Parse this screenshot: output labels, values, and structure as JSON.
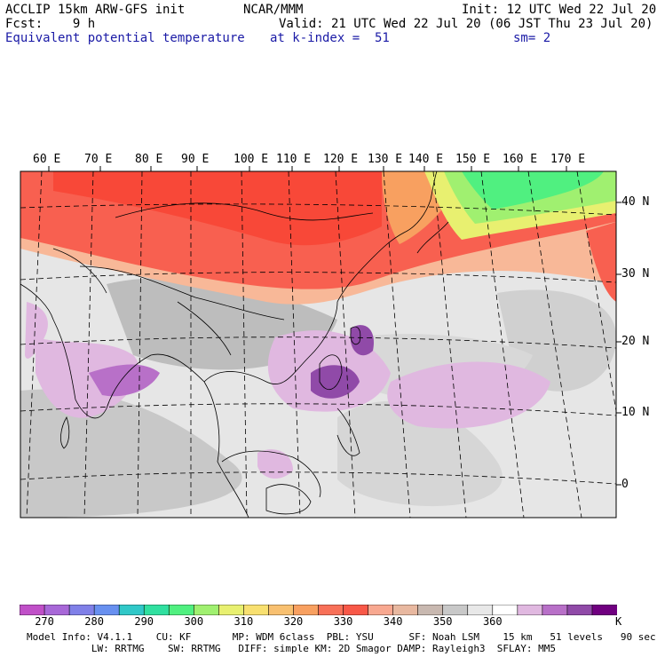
{
  "header": {
    "left_line1": "ACCLIP 15km ARW-GFS init",
    "left_line2": "Fcst:    9 h",
    "center_line1": "NCAR/MMM",
    "init": "Init: 12 UTC Wed 22 Jul 20",
    "valid": "Valid: 21 UTC Wed 22 Jul 20 (06 JST Thu 23 Jul 20)",
    "field_name": "Equivalent potential temperature",
    "level": "at k-index =  51",
    "smoothing": "sm= 2"
  },
  "map": {
    "lon_labels": [
      "60 E",
      "70 E",
      "80 E",
      "90 E",
      "100 E",
      "110 E",
      "120 E",
      "130 E",
      "140 E",
      "150 E",
      "160 E",
      "170 E"
    ],
    "lat_labels": [
      "40 N",
      "30 N",
      "20 N",
      "10 N",
      "0"
    ]
  },
  "colorbar": {
    "colors": [
      "#c050c8",
      "#a868d8",
      "#8080e8",
      "#6890f0",
      "#30c8c8",
      "#30e0a0",
      "#50f080",
      "#a0f070",
      "#e8f070",
      "#f8e070",
      "#f8c070",
      "#f8a060",
      "#f87058",
      "#f85848",
      "#f8a890",
      "#e8b8a0",
      "#c8b8b0",
      "#c8c8c8",
      "#e8e8e8",
      "#ffffff",
      "#e0b8e0",
      "#b870c8",
      "#904aa8",
      "#700080"
    ],
    "labels": [
      "270",
      "280",
      "290",
      "300",
      "310",
      "320",
      "330",
      "340",
      "350",
      "360"
    ],
    "unit": "K"
  },
  "footer": {
    "line1": "Model Info: V4.1.1    CU: KF       MP: WDM 6class  PBL: YSU      SF: Noah LSM    15 km   51 levels   90 sec",
    "line2": "           LW: RRTMG    SW: RRTMG   DIFF: simple KM: 2D Smagor DAMP: Rayleigh3  SFLAY: MM5"
  }
}
